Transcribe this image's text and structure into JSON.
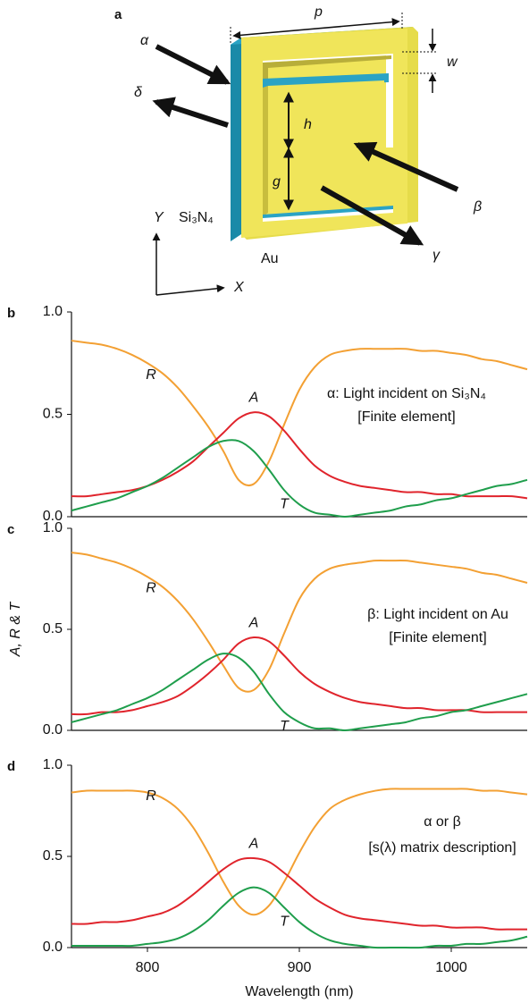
{
  "diagram": {
    "panel": "a",
    "labels": {
      "p": "p",
      "w": "w",
      "alpha": "α",
      "delta": "δ",
      "h": "h",
      "g": "g",
      "beta": "β",
      "gamma": "γ",
      "y_axis": "Y",
      "x_axis": "X",
      "si3n4": "Si₃N₄",
      "au": "Au"
    }
  },
  "chart_data": [
    {
      "type": "line",
      "panel": "b",
      "annotations": [
        "α: Light incident on Si₃N₄",
        "[Finite element]"
      ],
      "x": [
        750,
        760,
        770,
        780,
        790,
        800,
        810,
        820,
        830,
        840,
        850,
        860,
        870,
        880,
        890,
        900,
        910,
        920,
        930,
        940,
        950,
        960,
        970,
        980,
        990,
        1000,
        1010,
        1020,
        1030,
        1040,
        1050
      ],
      "xlim": [
        750,
        1050
      ],
      "ylim": [
        0,
        1
      ],
      "yticks": [
        {
          "value": 0,
          "label": "0.0"
        },
        0.5,
        {
          "value": 1,
          "label": "1.0"
        }
      ],
      "series": [
        {
          "name": "R",
          "color": "#f3a033",
          "values": [
            0.86,
            0.85,
            0.84,
            0.82,
            0.79,
            0.75,
            0.7,
            0.63,
            0.54,
            0.44,
            0.32,
            0.18,
            0.16,
            0.27,
            0.45,
            0.62,
            0.73,
            0.79,
            0.81,
            0.82,
            0.82,
            0.82,
            0.82,
            0.81,
            0.81,
            0.8,
            0.79,
            0.77,
            0.76,
            0.74,
            0.72
          ]
        },
        {
          "name": "A",
          "color": "#e0242c",
          "values": [
            0.1,
            0.1,
            0.11,
            0.12,
            0.13,
            0.15,
            0.18,
            0.22,
            0.27,
            0.34,
            0.41,
            0.48,
            0.51,
            0.49,
            0.42,
            0.33,
            0.25,
            0.2,
            0.17,
            0.15,
            0.14,
            0.13,
            0.12,
            0.12,
            0.11,
            0.11,
            0.1,
            0.1,
            0.1,
            0.1,
            0.09
          ]
        },
        {
          "name": "T",
          "color": "#1f9e4c",
          "values": [
            0.03,
            0.05,
            0.07,
            0.09,
            0.12,
            0.15,
            0.19,
            0.24,
            0.29,
            0.34,
            0.37,
            0.37,
            0.32,
            0.23,
            0.13,
            0.06,
            0.02,
            0.01,
            0.0,
            0.01,
            0.02,
            0.03,
            0.05,
            0.06,
            0.08,
            0.09,
            0.11,
            0.13,
            0.15,
            0.16,
            0.18
          ]
        }
      ]
    },
    {
      "type": "line",
      "panel": "c",
      "ylabel": "A, R & T",
      "annotations": [
        "β: Light incident on Au",
        "[Finite element]"
      ],
      "x": [
        750,
        760,
        770,
        780,
        790,
        800,
        810,
        820,
        830,
        840,
        850,
        860,
        870,
        880,
        890,
        900,
        910,
        920,
        930,
        940,
        950,
        960,
        970,
        980,
        990,
        1000,
        1010,
        1020,
        1030,
        1040,
        1050
      ],
      "xlim": [
        750,
        1050
      ],
      "ylim": [
        0,
        1
      ],
      "yticks": [
        {
          "value": 0,
          "label": "0.0"
        },
        0.5,
        {
          "value": 1,
          "label": "1.0"
        }
      ],
      "series": [
        {
          "name": "R",
          "color": "#f3a033",
          "values": [
            0.88,
            0.87,
            0.85,
            0.83,
            0.8,
            0.76,
            0.71,
            0.64,
            0.55,
            0.44,
            0.32,
            0.21,
            0.2,
            0.3,
            0.48,
            0.65,
            0.75,
            0.8,
            0.82,
            0.83,
            0.84,
            0.84,
            0.84,
            0.83,
            0.82,
            0.81,
            0.8,
            0.78,
            0.77,
            0.75,
            0.73
          ]
        },
        {
          "name": "A",
          "color": "#e0242c",
          "values": [
            0.08,
            0.08,
            0.09,
            0.09,
            0.1,
            0.12,
            0.14,
            0.17,
            0.22,
            0.28,
            0.35,
            0.43,
            0.46,
            0.44,
            0.37,
            0.29,
            0.23,
            0.19,
            0.16,
            0.14,
            0.13,
            0.12,
            0.11,
            0.11,
            0.1,
            0.1,
            0.1,
            0.09,
            0.09,
            0.09,
            0.09
          ]
        },
        {
          "name": "T",
          "color": "#1f9e4c",
          "values": [
            0.04,
            0.06,
            0.08,
            0.1,
            0.13,
            0.16,
            0.2,
            0.25,
            0.3,
            0.35,
            0.38,
            0.36,
            0.29,
            0.18,
            0.09,
            0.04,
            0.01,
            0.01,
            0.0,
            0.01,
            0.02,
            0.03,
            0.04,
            0.06,
            0.07,
            0.09,
            0.1,
            0.12,
            0.14,
            0.16,
            0.18
          ]
        }
      ]
    },
    {
      "type": "line",
      "panel": "d",
      "xlabel": "Wavelength (nm)",
      "annotations": [
        "α or β",
        "[s(λ) matrix description]"
      ],
      "x": [
        750,
        760,
        770,
        780,
        790,
        800,
        810,
        820,
        830,
        840,
        850,
        860,
        870,
        880,
        890,
        900,
        910,
        920,
        930,
        940,
        950,
        960,
        970,
        980,
        990,
        1000,
        1010,
        1020,
        1030,
        1040,
        1050
      ],
      "xlim": [
        750,
        1050
      ],
      "xticks": [
        800,
        900,
        1000
      ],
      "ylim": [
        0,
        1
      ],
      "yticks": [
        {
          "value": 0,
          "label": "0.0"
        },
        0.5,
        {
          "value": 1,
          "label": "1.0"
        }
      ],
      "series": [
        {
          "name": "R",
          "color": "#f3a033",
          "values": [
            0.85,
            0.86,
            0.86,
            0.86,
            0.86,
            0.85,
            0.82,
            0.76,
            0.66,
            0.52,
            0.36,
            0.23,
            0.18,
            0.23,
            0.36,
            0.52,
            0.66,
            0.76,
            0.81,
            0.84,
            0.86,
            0.87,
            0.87,
            0.87,
            0.87,
            0.87,
            0.87,
            0.86,
            0.86,
            0.85,
            0.84
          ]
        },
        {
          "name": "A",
          "color": "#e0242c",
          "values": [
            0.13,
            0.13,
            0.14,
            0.14,
            0.15,
            0.17,
            0.19,
            0.23,
            0.29,
            0.36,
            0.43,
            0.48,
            0.49,
            0.47,
            0.41,
            0.34,
            0.27,
            0.22,
            0.18,
            0.16,
            0.15,
            0.14,
            0.13,
            0.12,
            0.12,
            0.11,
            0.11,
            0.11,
            0.1,
            0.1,
            0.1
          ]
        },
        {
          "name": "T",
          "color": "#1f9e4c",
          "values": [
            0.01,
            0.01,
            0.01,
            0.01,
            0.01,
            0.02,
            0.03,
            0.05,
            0.09,
            0.15,
            0.23,
            0.3,
            0.33,
            0.3,
            0.22,
            0.14,
            0.08,
            0.04,
            0.02,
            0.01,
            0.0,
            0.0,
            0.0,
            0.0,
            0.01,
            0.01,
            0.02,
            0.02,
            0.03,
            0.04,
            0.06
          ]
        }
      ]
    }
  ]
}
